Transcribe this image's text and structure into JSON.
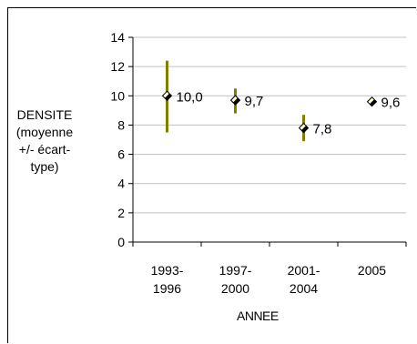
{
  "chart_data": {
    "type": "scatter",
    "title": "",
    "ylabel_lines": [
      "DENSITE",
      "(moyenne",
      "+/- écart-",
      "type)"
    ],
    "xlabel": "ANNEE",
    "ylim": [
      0,
      14
    ],
    "yticks": [
      0,
      2,
      4,
      6,
      8,
      10,
      12,
      14
    ],
    "grid": true,
    "categories": [
      [
        "1993-",
        "1996"
      ],
      [
        "1997-",
        "2000"
      ],
      [
        "2001-",
        "2004"
      ],
      [
        "2005"
      ]
    ],
    "series": [
      {
        "values": [
          10.0,
          9.7,
          7.8,
          9.6
        ],
        "labels": [
          "10,0",
          "9,7",
          "7,8",
          "9,6"
        ],
        "error_low": [
          7.5,
          8.8,
          6.9,
          null
        ],
        "error_high": [
          12.4,
          10.5,
          8.7,
          null
        ]
      }
    ],
    "colors": {
      "error_bar": "#808000",
      "marker_fill": "#ffffcc",
      "marker_stroke": "#000000",
      "grid": "#c0c0c0"
    }
  }
}
